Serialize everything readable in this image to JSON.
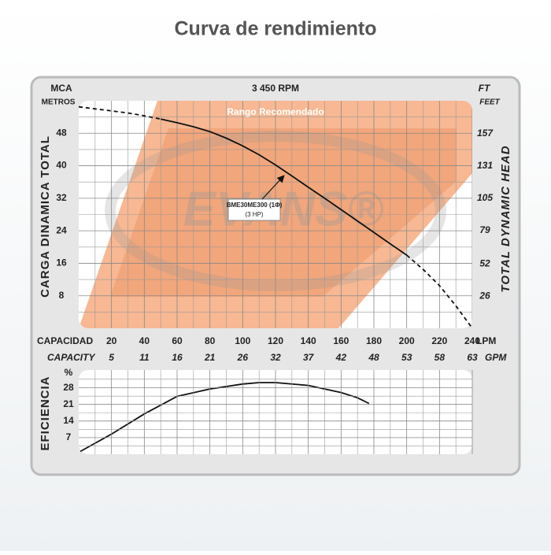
{
  "title": "Curva de rendimiento",
  "chart_data": [
    {
      "type": "line",
      "title": "3 450 RPM",
      "y_label_top": "MCA",
      "y_unit": "METROS",
      "y2_label_top": "FT",
      "y2_unit": "FEET",
      "y_label": "CARGA DINAMICA TOTAL",
      "y2_label": "TOTAL DYNAMIC HEAD",
      "x_label": "CAPACIDAD",
      "x_unit": "LPM",
      "x2_label": "CAPACITY",
      "x2_unit": "GPM",
      "annotation": "Rango Recomendado",
      "watermark": "EVANS®",
      "curve_label": [
        "BME30ME300 (1Φ)",
        "(3 HP)"
      ],
      "x": [
        0,
        10,
        20,
        30,
        40,
        50,
        60,
        70,
        80,
        90,
        100,
        110,
        120,
        130,
        140,
        150,
        160,
        170,
        180,
        190,
        200,
        210,
        220,
        230,
        240
      ],
      "series": [
        {
          "style": "dashed",
          "color": "#111111",
          "values": [
            54.5,
            54.0,
            53.5,
            53.0,
            52.3,
            51.5,
            null,
            null,
            null,
            null,
            null,
            null,
            null,
            null,
            null,
            null,
            null,
            null,
            null,
            null,
            18.0,
            14.5,
            10.5,
            5.5,
            0
          ]
        },
        {
          "style": "solid",
          "color": "#111111",
          "values": [
            null,
            null,
            null,
            null,
            null,
            51.5,
            50.6,
            49.6,
            48.4,
            46.8,
            44.9,
            42.7,
            40.2,
            37.5,
            34.7,
            32.0,
            29.2,
            26.4,
            23.6,
            20.8,
            18.0,
            null,
            null,
            null,
            null
          ]
        }
      ],
      "xlim": [
        0,
        240
      ],
      "xticks": [
        20,
        40,
        60,
        80,
        100,
        120,
        140,
        160,
        180,
        200,
        220,
        240
      ],
      "x2lim": [
        0,
        63.4
      ],
      "x2ticks": [
        {
          "value": 5.28,
          "label": "5"
        },
        {
          "value": 10.57,
          "label": "11"
        },
        {
          "value": 15.85,
          "label": "16"
        },
        {
          "value": 21.13,
          "label": "21"
        },
        {
          "value": 26.42,
          "label": "26"
        },
        {
          "value": 31.7,
          "label": "32"
        },
        {
          "value": 36.98,
          "label": "37"
        },
        {
          "value": 42.27,
          "label": "42"
        },
        {
          "value": 47.55,
          "label": "48"
        },
        {
          "value": 52.84,
          "label": "53"
        },
        {
          "value": 58.12,
          "label": "58"
        },
        {
          "value": 63.4,
          "label": "63"
        }
      ],
      "ylim": [
        0,
        56
      ],
      "yticks": [
        8,
        16,
        24,
        32,
        40,
        48
      ],
      "y2lim": [
        0,
        183.7
      ],
      "y2ticks": [
        26,
        52,
        79,
        105,
        131,
        157
      ],
      "grid": true
    },
    {
      "type": "line",
      "y_label": "EFICIENCIA",
      "y_unit": "%",
      "x": [
        1,
        20,
        40,
        60,
        80,
        100,
        110,
        120,
        140,
        160,
        170,
        177
      ],
      "series": [
        {
          "style": "solid",
          "color": "#111111",
          "values": [
            1.2,
            8.5,
            17,
            24.4,
            27.5,
            29.6,
            30.2,
            30.2,
            29,
            26,
            23.8,
            21.4
          ]
        }
      ],
      "xlim": [
        0,
        240
      ],
      "ylim": [
        0,
        35.5
      ],
      "yticks": [
        7,
        14,
        21,
        28
      ],
      "grid": true
    }
  ]
}
